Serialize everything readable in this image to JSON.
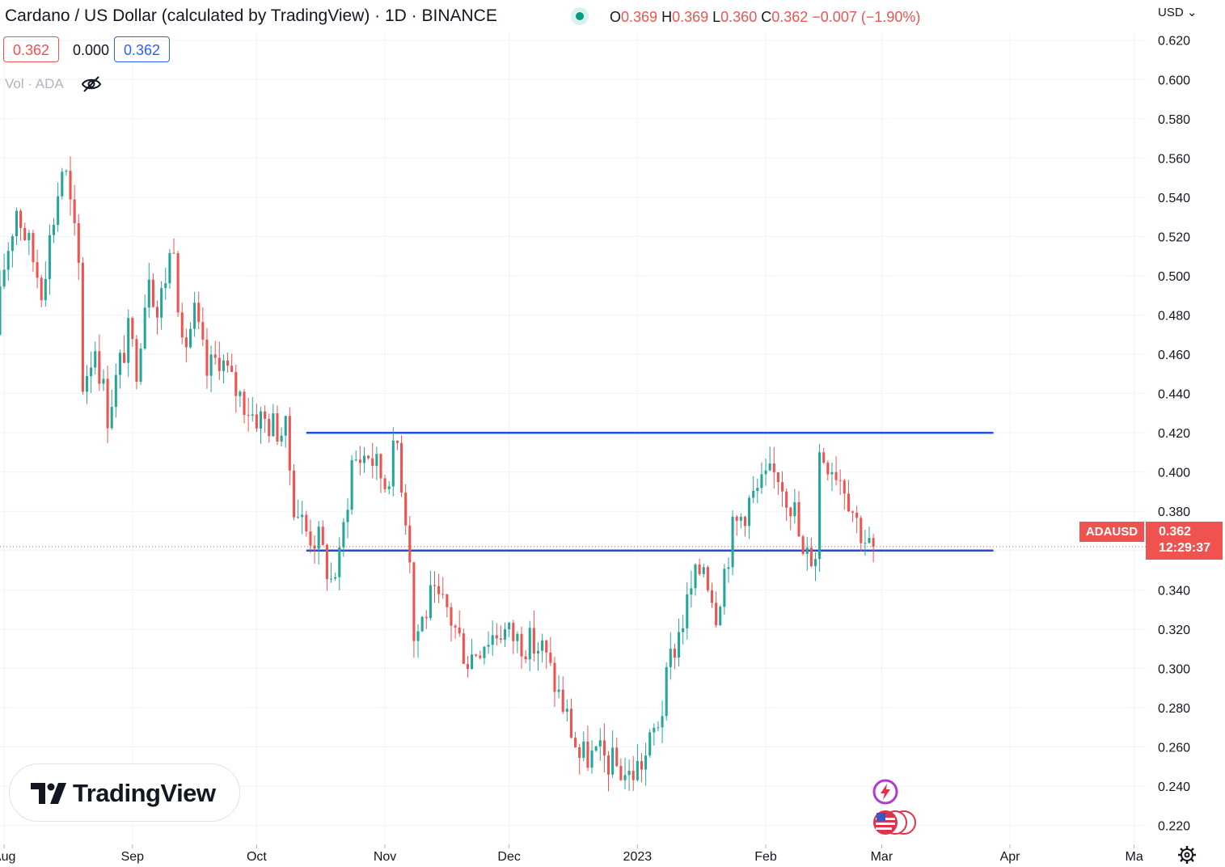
{
  "header": {
    "title": "Cardano / US Dollar (calculated by TradingView) · 1D · BINANCE",
    "ohlc": [
      {
        "key": "O",
        "value": "0.369"
      },
      {
        "key": "H",
        "value": "0.369"
      },
      {
        "key": "L",
        "value": "0.360"
      },
      {
        "key": "C",
        "value": "0.362"
      }
    ],
    "change": "−0.007 (−1.90%)"
  },
  "price_boxes": {
    "bid": "0.362",
    "spread": "0.000",
    "ask": "0.362"
  },
  "volume_label": "Vol · ADA",
  "currency_selector": "USD",
  "logo_text": "TradingView",
  "last_price_tag": {
    "symbol": "ADAUSD",
    "price": "0.362",
    "countdown": "12:29:37"
  },
  "icons": {
    "hide": "eye-off-icon",
    "currency": "chevron-down-icon",
    "settings": "gear-icon",
    "events": "lightning-icon",
    "flags": "us-flag-icon"
  },
  "colors": {
    "up": "#26a69a",
    "down": "#ef5350",
    "level_line": "#1e4fd8",
    "grid": "#f0f3fa",
    "text": "#131722"
  },
  "chart_data": {
    "type": "candlestick",
    "symbol": "ADAUSD",
    "interval": "1D",
    "y_axis": {
      "ticks": [
        "0.220",
        "0.240",
        "0.260",
        "0.280",
        "0.300",
        "0.320",
        "0.340",
        "0.360",
        "0.380",
        "0.400",
        "0.420",
        "0.440",
        "0.460",
        "0.480",
        "0.500",
        "0.520",
        "0.540",
        "0.560",
        "0.580",
        "0.600",
        "0.620"
      ],
      "range": [
        0.212,
        0.624
      ]
    },
    "x_axis": {
      "tick_labels": [
        "Aug",
        "Sep",
        "Oct",
        "Nov",
        "Dec",
        "2023",
        "Feb",
        "Mar",
        "Apr",
        "Ma"
      ],
      "start": "2022-07-31",
      "end": "2023-05-04"
    },
    "horizontal_levels": [
      {
        "price": 0.42,
        "from": "2022-10-13",
        "to": "2023-03-28"
      },
      {
        "price": 0.36,
        "from": "2022-10-13",
        "to": "2023-03-28"
      }
    ],
    "last_price": 0.362,
    "anchors": [
      [
        "2022-07-31",
        0.47
      ],
      [
        "2022-08-02",
        0.505
      ],
      [
        "2022-08-05",
        0.535
      ],
      [
        "2022-08-08",
        0.515
      ],
      [
        "2022-08-11",
        0.495
      ],
      [
        "2022-08-14",
        0.53
      ],
      [
        "2022-08-16",
        0.555
      ],
      [
        "2022-08-17",
        0.55
      ],
      [
        "2022-08-20",
        0.505
      ],
      [
        "2022-08-21",
        0.445
      ],
      [
        "2022-08-24",
        0.465
      ],
      [
        "2022-08-27",
        0.43
      ],
      [
        "2022-08-30",
        0.455
      ],
      [
        "2022-09-01",
        0.47
      ],
      [
        "2022-09-03",
        0.455
      ],
      [
        "2022-09-06",
        0.505
      ],
      [
        "2022-09-08",
        0.48
      ],
      [
        "2022-09-12",
        0.52
      ],
      [
        "2022-09-14",
        0.46
      ],
      [
        "2022-09-17",
        0.48
      ],
      [
        "2022-09-20",
        0.45
      ],
      [
        "2022-09-23",
        0.46
      ],
      [
        "2022-09-26",
        0.445
      ],
      [
        "2022-10-01",
        0.43
      ],
      [
        "2022-10-05",
        0.425
      ],
      [
        "2022-10-09",
        0.42
      ],
      [
        "2022-10-11",
        0.385
      ],
      [
        "2022-10-14",
        0.37
      ],
      [
        "2022-10-17",
        0.365
      ],
      [
        "2022-10-20",
        0.345
      ],
      [
        "2022-10-22",
        0.355
      ],
      [
        "2022-10-25",
        0.405
      ],
      [
        "2022-10-29",
        0.41
      ],
      [
        "2022-11-02",
        0.395
      ],
      [
        "2022-11-05",
        0.415
      ],
      [
        "2022-11-08",
        0.36
      ],
      [
        "2022-11-09",
        0.315
      ],
      [
        "2022-11-13",
        0.335
      ],
      [
        "2022-11-17",
        0.33
      ],
      [
        "2022-11-22",
        0.305
      ],
      [
        "2022-11-26",
        0.315
      ],
      [
        "2022-11-30",
        0.32
      ],
      [
        "2022-12-04",
        0.315
      ],
      [
        "2022-12-10",
        0.31
      ],
      [
        "2022-12-16",
        0.275
      ],
      [
        "2022-12-19",
        0.255
      ],
      [
        "2022-12-24",
        0.255
      ],
      [
        "2022-12-28",
        0.25
      ],
      [
        "2022-12-31",
        0.245
      ],
      [
        "2023-01-04",
        0.255
      ],
      [
        "2023-01-08",
        0.28
      ],
      [
        "2023-01-10",
        0.305
      ],
      [
        "2023-01-13",
        0.325
      ],
      [
        "2023-01-15",
        0.34
      ],
      [
        "2023-01-18",
        0.355
      ],
      [
        "2023-01-21",
        0.33
      ],
      [
        "2023-01-25",
        0.37
      ],
      [
        "2023-01-29",
        0.385
      ],
      [
        "2023-02-02",
        0.395
      ],
      [
        "2023-02-05",
        0.4
      ],
      [
        "2023-02-09",
        0.38
      ],
      [
        "2023-02-11",
        0.355
      ],
      [
        "2023-02-14",
        0.36
      ],
      [
        "2023-02-15",
        0.41
      ],
      [
        "2023-02-18",
        0.405
      ],
      [
        "2023-02-21",
        0.395
      ],
      [
        "2023-02-24",
        0.375
      ],
      [
        "2023-02-27",
        0.362
      ]
    ]
  }
}
